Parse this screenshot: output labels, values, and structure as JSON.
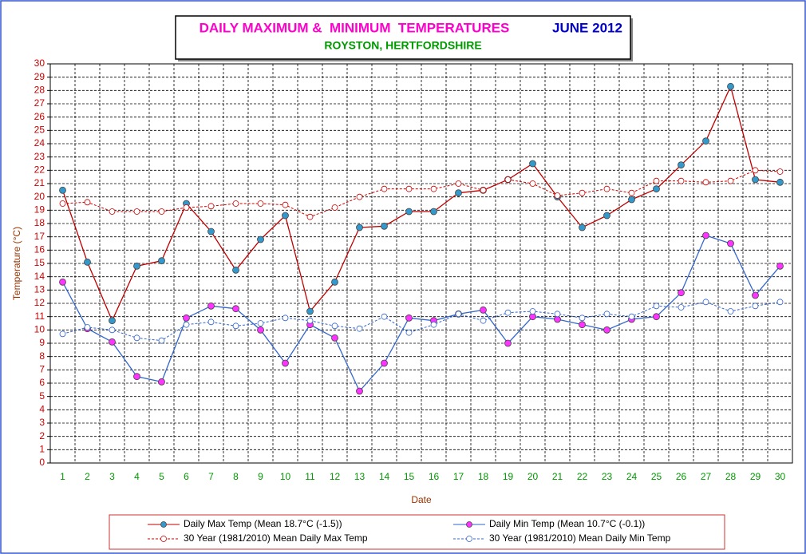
{
  "chart_data": {
    "type": "line",
    "title": "DAILY MAXIMUM &  MINIMUM  TEMPERATURES",
    "period": "JUNE 2012",
    "subtitle": "ROYSTON, HERTFORDSHIRE",
    "x_label": "Date",
    "y_label": "Temperature (°C)",
    "categories": [
      "1",
      "2",
      "3",
      "4",
      "5",
      "6",
      "7",
      "8",
      "9",
      "10",
      "11",
      "12",
      "13",
      "14",
      "15",
      "16",
      "17",
      "18",
      "19",
      "20",
      "21",
      "22",
      "23",
      "24",
      "25",
      "26",
      "27",
      "28",
      "29",
      "30"
    ],
    "ylim": [
      0,
      30
    ],
    "yticks": [
      0,
      1,
      2,
      3,
      4,
      5,
      6,
      7,
      8,
      9,
      10,
      11,
      12,
      13,
      14,
      15,
      16,
      17,
      18,
      19,
      20,
      21,
      22,
      23,
      24,
      25,
      26,
      27,
      28,
      29,
      30
    ],
    "grid": true,
    "series": [
      {
        "name": "Daily Max Temp (Mean 18.7°C (-1.5))",
        "color": "#c00000",
        "marker_color": "#3399cc",
        "dashed": false,
        "hollow": false,
        "values": [
          20.5,
          15.1,
          10.7,
          14.8,
          15.2,
          19.5,
          17.4,
          14.5,
          16.8,
          18.6,
          11.4,
          13.6,
          17.7,
          17.8,
          18.9,
          18.9,
          20.3,
          20.5,
          21.3,
          22.5,
          20.0,
          17.7,
          18.6,
          19.8,
          20.6,
          22.4,
          24.2,
          28.3,
          21.3,
          21.1
        ]
      },
      {
        "name": "Daily Min Temp (Mean 10.7°C (-0.1))",
        "color": "#3366cc",
        "marker_color": "#ff33ff",
        "dashed": false,
        "hollow": false,
        "values": [
          13.6,
          10.1,
          9.1,
          6.5,
          6.1,
          10.9,
          11.8,
          11.6,
          10.0,
          7.5,
          10.4,
          9.4,
          5.4,
          7.5,
          10.9,
          10.7,
          11.2,
          11.5,
          9.0,
          11.0,
          10.8,
          10.4,
          10.0,
          10.8,
          11.0,
          12.8,
          17.1,
          16.5,
          12.6,
          14.8
        ]
      },
      {
        "name": "30 Year (1981/2010) Mean Daily Max Temp",
        "color": "#cc0000",
        "marker_color": "#cc0000",
        "dashed": true,
        "hollow": true,
        "values": [
          19.5,
          19.6,
          18.9,
          18.9,
          18.9,
          19.2,
          19.3,
          19.5,
          19.5,
          19.4,
          18.5,
          19.2,
          20.0,
          20.6,
          20.6,
          20.6,
          21.0,
          20.5,
          21.3,
          21.0,
          20.1,
          20.3,
          20.6,
          20.3,
          21.2,
          21.2,
          21.1,
          21.2,
          22.0,
          21.9
        ]
      },
      {
        "name": "30 Year (1981/2010) Mean Daily Min Temp",
        "color": "#3366cc",
        "marker_color": "#3366cc",
        "dashed": true,
        "hollow": true,
        "values": [
          9.7,
          10.2,
          10.0,
          9.4,
          9.2,
          10.4,
          10.6,
          10.3,
          10.5,
          10.9,
          10.7,
          10.3,
          10.1,
          11.0,
          9.8,
          10.4,
          11.2,
          10.7,
          11.3,
          11.4,
          11.2,
          10.9,
          11.2,
          11.0,
          11.8,
          11.7,
          12.1,
          11.4,
          11.8,
          12.1
        ]
      }
    ]
  }
}
